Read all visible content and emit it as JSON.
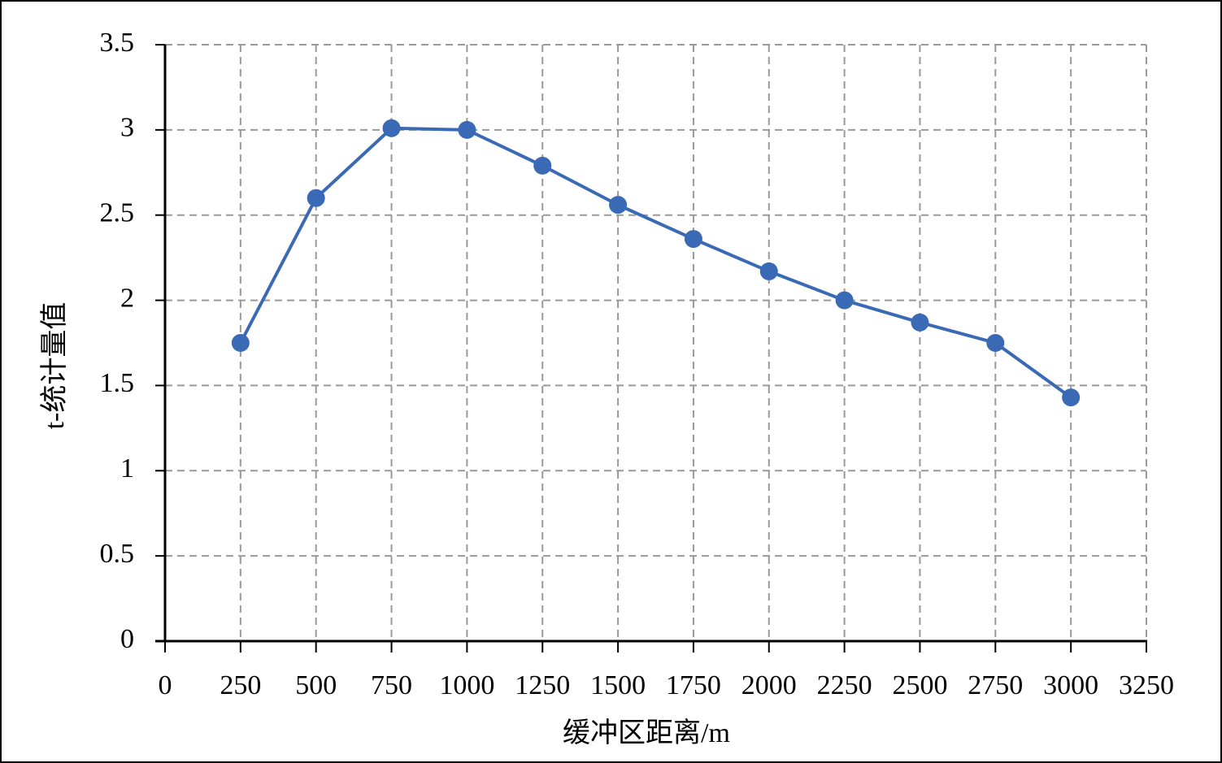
{
  "chart_data": {
    "type": "line",
    "x_label": "缓冲区距离/m",
    "y_label": "t-统计量值",
    "x": [
      250,
      500,
      750,
      1000,
      1250,
      1500,
      1750,
      2000,
      2250,
      2500,
      2750,
      3000
    ],
    "series": [
      {
        "color": "#3a6ab5",
        "values": [
          1.75,
          2.6,
          3.01,
          3.0,
          2.79,
          2.56,
          2.36,
          2.17,
          2.0,
          1.87,
          1.75,
          1.43
        ]
      }
    ],
    "xlim": [
      0,
      3250
    ],
    "xticks": [
      0,
      250,
      500,
      750,
      1000,
      1250,
      1500,
      1750,
      2000,
      2250,
      2500,
      2750,
      3000,
      3250
    ],
    "ylim": [
      0,
      3.5
    ],
    "yticks": [
      0,
      0.5,
      1,
      1.5,
      2,
      2.5,
      3,
      3.5
    ],
    "grid": true
  }
}
